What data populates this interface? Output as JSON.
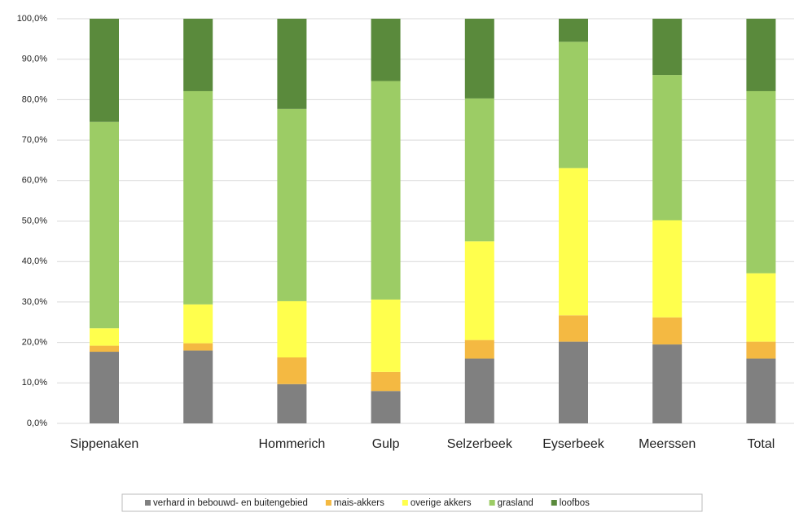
{
  "chart_data": {
    "type": "stacked-bar",
    "categories": [
      "Sippenaken",
      null,
      "Hommerich",
      "Gulp",
      "Selzerbeek",
      "Eyserbeek",
      "Meerssen",
      "Total"
    ],
    "series": [
      {
        "name": "verhard in bebouwd- en buitengebied",
        "color": "#808080",
        "values": [
          17.7,
          18.0,
          9.7,
          8.0,
          16.0,
          20.2,
          19.5,
          16.0
        ]
      },
      {
        "name": "mais-akkers",
        "color": "#f4b942",
        "values": [
          1.5,
          1.8,
          6.6,
          4.7,
          4.6,
          6.5,
          6.7,
          4.2
        ]
      },
      {
        "name": "overige akkers",
        "color": "#ffff4d",
        "values": [
          4.3,
          9.6,
          13.9,
          17.9,
          24.4,
          36.4,
          24.0,
          16.9
        ]
      },
      {
        "name": "grasland",
        "color": "#9ccc65",
        "values": [
          51.0,
          52.7,
          47.5,
          54.0,
          35.3,
          31.2,
          35.9,
          45.0
        ]
      },
      {
        "name": "loofbos",
        "color": "#5a8a3c",
        "values": [
          25.5,
          17.9,
          22.3,
          15.4,
          19.7,
          5.7,
          13.9,
          17.9
        ]
      }
    ],
    "ylim": [
      0,
      100
    ],
    "yticks": [
      {
        "value": 0,
        "label": "0,0%"
      },
      {
        "value": 10,
        "label": "10,0%"
      },
      {
        "value": 20,
        "label": "20,0%"
      },
      {
        "value": 30,
        "label": "30,0%"
      },
      {
        "value": 40,
        "label": "40,0%"
      },
      {
        "value": 50,
        "label": "50,0%"
      },
      {
        "value": 60,
        "label": "60,0%"
      },
      {
        "value": 70,
        "label": "70,0%"
      },
      {
        "value": 80,
        "label": "80,0%"
      },
      {
        "value": 90,
        "label": "90,0%"
      },
      {
        "value": 100,
        "label": "100,0%"
      }
    ],
    "grid": true,
    "legend": "bottom"
  }
}
